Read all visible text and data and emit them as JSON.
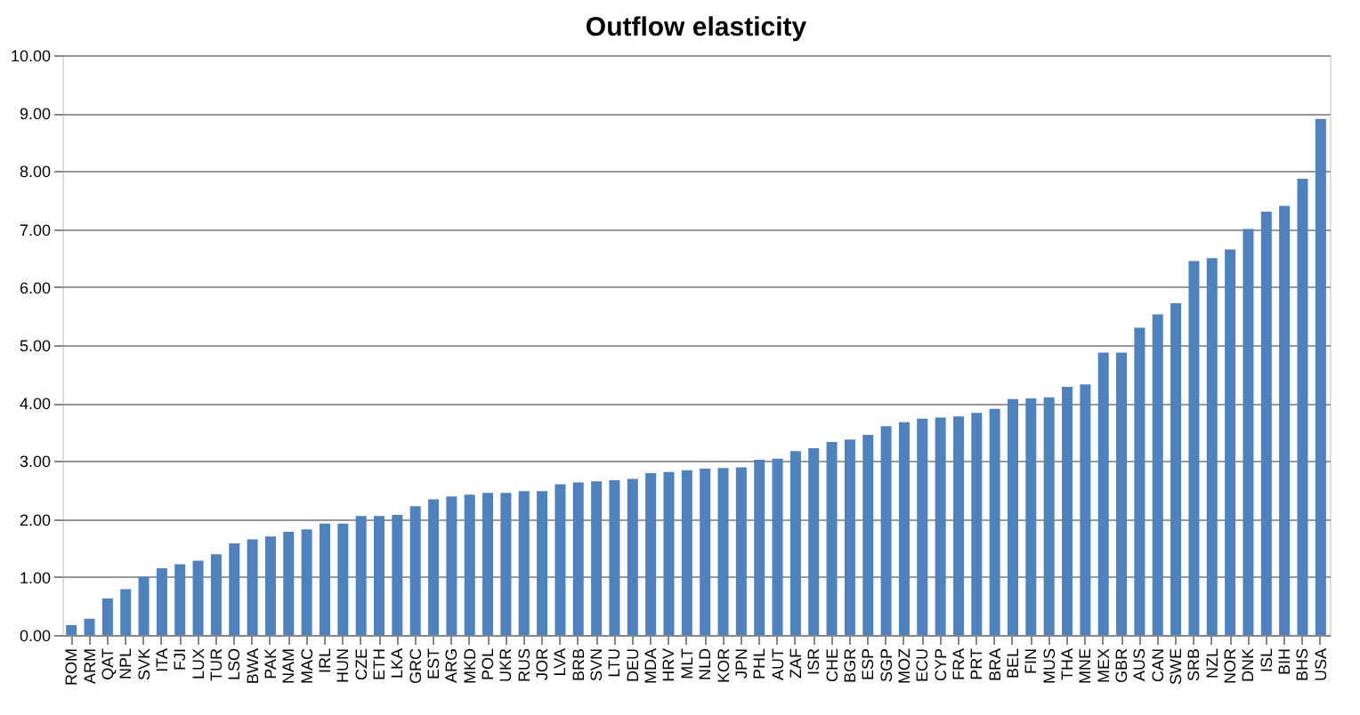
{
  "chart_data": {
    "type": "bar",
    "title": "Outflow elasticity",
    "categories": [
      "ROM",
      "ARM",
      "QAT",
      "NPL",
      "SVK",
      "ITA",
      "FJI",
      "LUX",
      "TUR",
      "LSO",
      "BWA",
      "PAK",
      "NAM",
      "MAC",
      "IRL",
      "HUN",
      "CZE",
      "ETH",
      "LKA",
      "GRC",
      "EST",
      "ARG",
      "MKD",
      "POL",
      "UKR",
      "RUS",
      "JOR",
      "LVA",
      "BRB",
      "SVN",
      "LTU",
      "DEU",
      "MDA",
      "HRV",
      "MLT",
      "NLD",
      "KOR",
      "JPN",
      "PHL",
      "AUT",
      "ZAF",
      "ISR",
      "CHE",
      "BGR",
      "ESP",
      "SGP",
      "MOZ",
      "ECU",
      "CYP",
      "FRA",
      "PRT",
      "BRA",
      "BEL",
      "FIN",
      "MUS",
      "THA",
      "MNE",
      "MEX",
      "GBR",
      "AUS",
      "CAN",
      "SWE",
      "SRB",
      "NZL",
      "NOR",
      "DNK",
      "ISL",
      "BIH",
      "BHS",
      "USA"
    ],
    "values": [
      0.17,
      0.28,
      0.63,
      0.79,
      1.0,
      1.15,
      1.22,
      1.28,
      1.39,
      1.58,
      1.65,
      1.7,
      1.78,
      1.82,
      1.92,
      1.92,
      2.05,
      2.05,
      2.07,
      2.22,
      2.34,
      2.39,
      2.42,
      2.45,
      2.45,
      2.48,
      2.48,
      2.6,
      2.63,
      2.65,
      2.67,
      2.69,
      2.79,
      2.81,
      2.84,
      2.87,
      2.88,
      2.89,
      3.02,
      3.04,
      3.17,
      3.22,
      3.33,
      3.37,
      3.45,
      3.6,
      3.67,
      3.73,
      3.75,
      3.77,
      3.83,
      3.9,
      4.07,
      4.08,
      4.1,
      4.28,
      4.32,
      4.87,
      4.87,
      5.3,
      5.53,
      5.72,
      6.45,
      6.5,
      6.65,
      7.0,
      7.3,
      7.4,
      7.87,
      8.9
    ],
    "color": "#4f81bd",
    "ylim": [
      0,
      10
    ],
    "yticks": [
      {
        "value": 0,
        "label": "0.00"
      },
      {
        "value": 1,
        "label": "1.00"
      },
      {
        "value": 2,
        "label": "2.00"
      },
      {
        "value": 3,
        "label": "3.00"
      },
      {
        "value": 4,
        "label": "4.00"
      },
      {
        "value": 5,
        "label": "5.00"
      },
      {
        "value": 6,
        "label": "6.00"
      },
      {
        "value": 7,
        "label": "7.00"
      },
      {
        "value": 8,
        "label": "8.00"
      },
      {
        "value": 9,
        "label": "9.00"
      },
      {
        "value": 10,
        "label": "10.00"
      }
    ],
    "grid": "y"
  }
}
